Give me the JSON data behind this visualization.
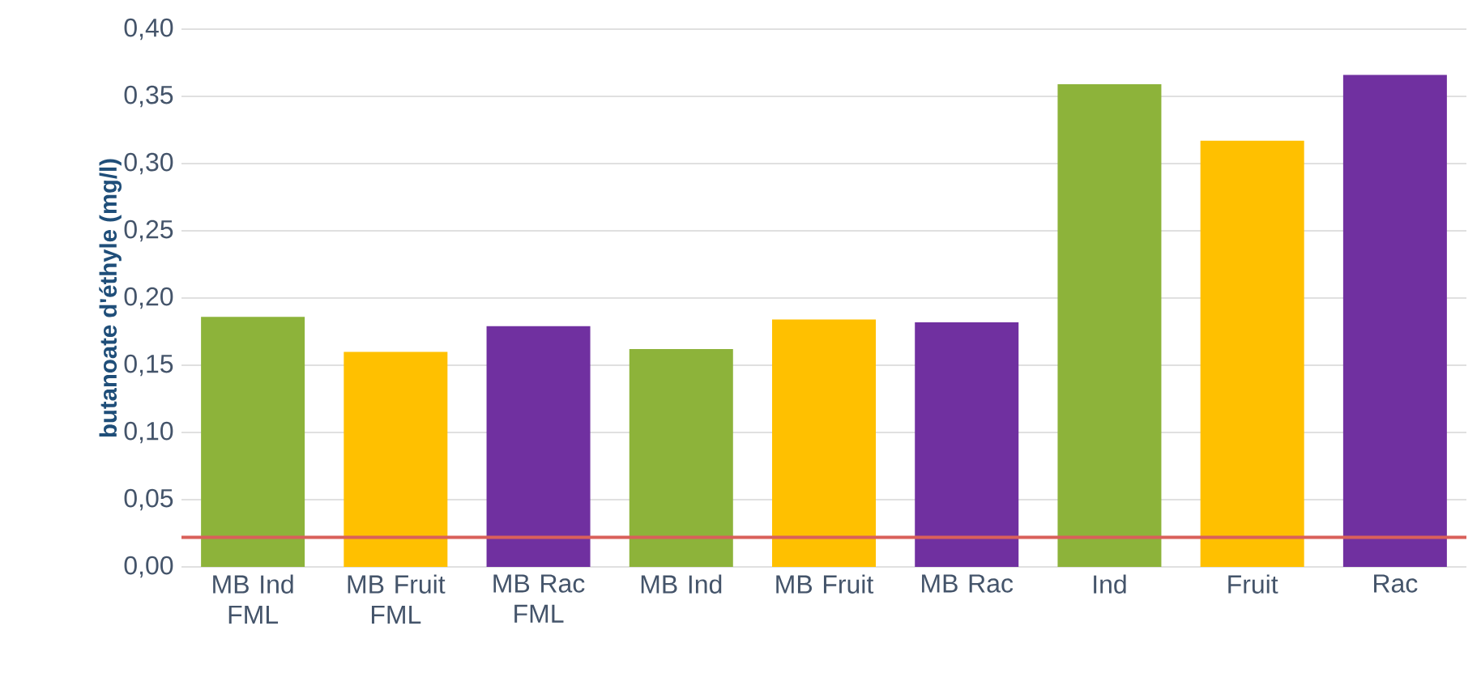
{
  "chart_data": {
    "type": "bar",
    "ylabel": "butanoate d'éthyle (mg/l)",
    "categories": [
      "MB Ind FML",
      "MB Fruit FML",
      "MB Rac FML",
      "MB Ind",
      "MB Fruit",
      "MB Rac",
      "Ind",
      "Fruit",
      "Rac"
    ],
    "values": [
      0.186,
      0.16,
      0.179,
      0.162,
      0.184,
      0.182,
      0.359,
      0.317,
      0.366
    ],
    "colors": [
      "#8db33a",
      "#ffc000",
      "#7030a0",
      "#8db33a",
      "#ffc000",
      "#7030a0",
      "#8db33a",
      "#ffc000",
      "#7030a0"
    ],
    "ylim": [
      0,
      0.4
    ],
    "yticks": [
      {
        "value": 0,
        "label": "0,00"
      },
      {
        "value": 0.05,
        "label": "0,05"
      },
      {
        "value": 0.1,
        "label": "0,10"
      },
      {
        "value": 0.15,
        "label": "0,15"
      },
      {
        "value": 0.2,
        "label": "0,20"
      },
      {
        "value": 0.25,
        "label": "0,25"
      },
      {
        "value": 0.3,
        "label": "0,30"
      },
      {
        "value": 0.35,
        "label": "0,35"
      },
      {
        "value": 0.4,
        "label": "0,40"
      }
    ],
    "grid": "y",
    "ref_lines": [
      {
        "axis": "y",
        "value": 0.022,
        "color": "#d9605a"
      }
    ]
  }
}
